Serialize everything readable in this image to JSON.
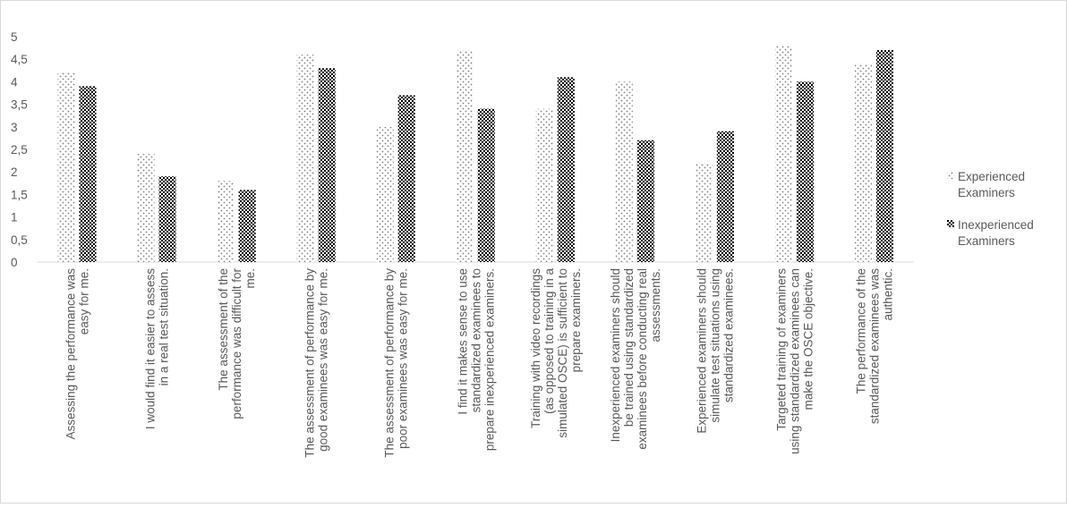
{
  "chart_data": {
    "type": "bar",
    "categories": [
      "Assessing the performance was easy for me.",
      "I would find it easier to assess in a real test situation.",
      "The assessment of the performance was difficult for me.",
      "The assessment of performance by good examinees was easy for me.",
      "The assessment of performance by poor examinees was easy for me.",
      "I find it makes sense to use standardized examinees to prepare inexperienced examiners.",
      "Training with video recordings (as opposed to training in a simulated OSCE) is sufficient to prepare examiners.",
      "Inexperienced examiners should be trained using standardized examinees before conducting real assessments.",
      "Experienced examiners should simulate test situations using standardized examinees.",
      "Targeted training of examiners using standardized examinees can make the OSCE objective.",
      "The performance of the standardized examinees was authentic."
    ],
    "series": [
      {
        "name": "Experienced Examiners",
        "color": "#7f7f7f",
        "values": [
          4.2,
          2.4,
          1.8,
          4.6,
          3.0,
          4.7,
          3.4,
          4.0,
          2.2,
          4.8,
          4.4
        ]
      },
      {
        "name": "Inexperienced Examiners",
        "color": "#000000",
        "values": [
          3.9,
          1.9,
          1.6,
          4.3,
          3.7,
          3.4,
          4.1,
          2.7,
          2.9,
          4.0,
          4.7
        ]
      }
    ],
    "ylim": [
      0,
      5
    ],
    "yticks": [
      0,
      {
        "value": 0.5,
        "label": "0,5"
      },
      1,
      {
        "value": 1.5,
        "label": "1,5"
      },
      2,
      {
        "value": 2.5,
        "label": "2,5"
      },
      3,
      {
        "value": 3.5,
        "label": "3,5"
      },
      4,
      {
        "value": 4.5,
        "label": "4,5"
      },
      5
    ],
    "grid": false,
    "legend": "right"
  }
}
